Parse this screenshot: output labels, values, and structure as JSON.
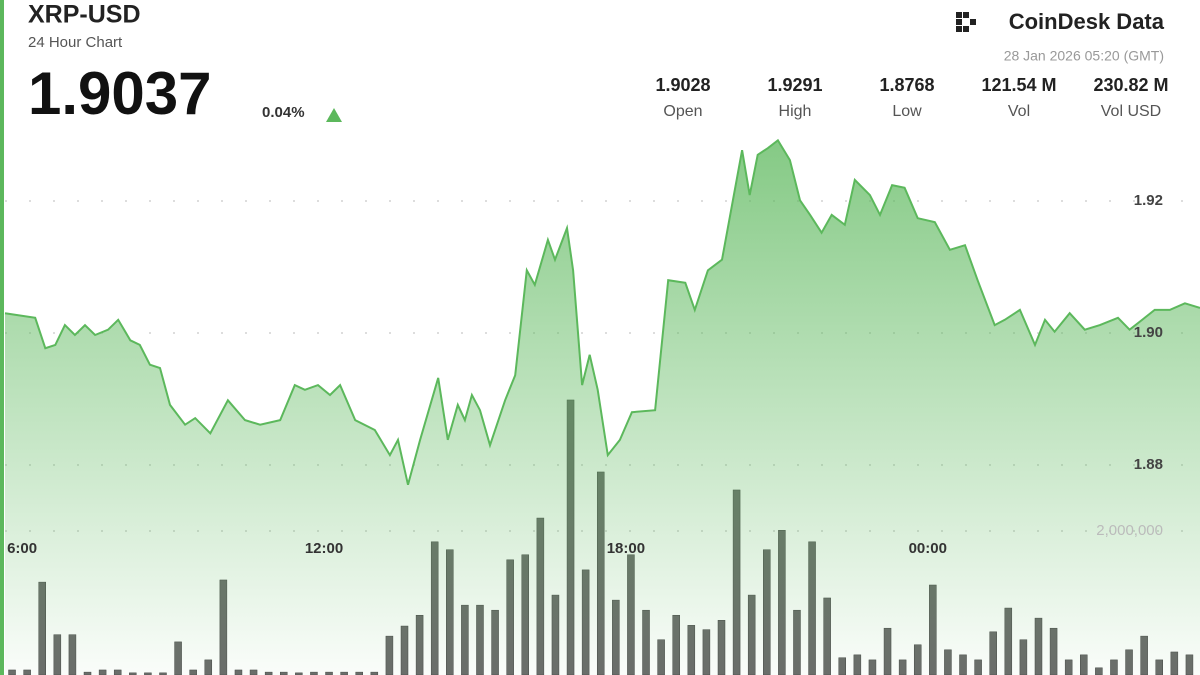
{
  "chart_data": {
    "type": "area",
    "title": "XRP-USD",
    "subtitle": "24 Hour Chart",
    "price": "1.9037",
    "change": "0.04%",
    "brand": "CoinDesk Data",
    "timestamp": "28 Jan 2026 05:20 (GMT)",
    "stats": [
      {
        "value": "1.9028",
        "label": "Open"
      },
      {
        "value": "1.9291",
        "label": "High"
      },
      {
        "value": "1.8768",
        "label": "Low"
      },
      {
        "value": "121.54 M",
        "label": "Vol"
      },
      {
        "value": "230.82 M",
        "label": "Vol USD"
      }
    ],
    "color": "#5cb85c",
    "grid": true,
    "xlim": [
      5.66,
      29.41
    ],
    "xticks": [
      {
        "value": 6,
        "label": "6:00"
      },
      {
        "value": 12,
        "label": "12:00"
      },
      {
        "value": 18,
        "label": "18:00"
      },
      {
        "value": 24,
        "label": "00:00"
      }
    ],
    "ylim": [
      1.865,
      1.935
    ],
    "yticks": [
      1.92,
      {
        "value": 1.9,
        "label": "1.90"
      },
      1.88
    ],
    "x": [
      5.66,
      6.26,
      6.46,
      6.66,
      6.85,
      7.05,
      7.25,
      7.45,
      7.71,
      7.91,
      8.15,
      8.34,
      8.54,
      8.74,
      8.94,
      9.24,
      9.44,
      9.74,
      10.09,
      10.43,
      10.73,
      11.13,
      11.42,
      11.62,
      11.88,
      12.12,
      12.32,
      12.62,
      13.01,
      13.31,
      13.47,
      13.67,
      13.91,
      14.27,
      14.46,
      14.66,
      14.8,
      14.94,
      15.1,
      15.3,
      15.6,
      15.8,
      16.03,
      16.19,
      16.45,
      16.59,
      16.83,
      16.95,
      17.13,
      17.28,
      17.44,
      17.64,
      17.88,
      18.12,
      18.58,
      18.84,
      19.18,
      19.37,
      19.63,
      19.91,
      20.31,
      20.46,
      20.62,
      20.82,
      21.02,
      21.26,
      21.46,
      21.66,
      21.89,
      22.09,
      22.35,
      22.55,
      22.85,
      23.05,
      23.29,
      23.54,
      23.8,
      24.14,
      24.44,
      24.74,
      24.99,
      25.33,
      25.53,
      25.83,
      26.13,
      26.33,
      26.52,
      26.82,
      27.12,
      27.42,
      27.78,
      28.01,
      28.51,
      28.81,
      29.11,
      29.41
    ],
    "values": [
      1.903,
      1.9023,
      1.8977,
      1.8982,
      1.9012,
      1.8997,
      1.9012,
      1.8997,
      1.9005,
      1.902,
      1.8989,
      1.8982,
      1.8952,
      1.8947,
      1.8891,
      1.8861,
      1.8871,
      1.8848,
      1.8898,
      1.8868,
      1.8861,
      1.8868,
      1.8921,
      1.8914,
      1.8921,
      1.8906,
      1.8921,
      1.8868,
      1.8853,
      1.8815,
      1.8838,
      1.877,
      1.8838,
      1.8932,
      1.8838,
      1.8891,
      1.8868,
      1.8906,
      1.8883,
      1.883,
      1.8898,
      1.8936,
      1.9095,
      1.9073,
      1.9141,
      1.9111,
      1.9159,
      1.9095,
      1.8921,
      1.8967,
      1.8914,
      1.8815,
      1.8838,
      1.888,
      1.8883,
      1.908,
      1.9076,
      1.9035,
      1.9095,
      1.9111,
      1.9277,
      1.9209,
      1.927,
      1.928,
      1.9292,
      1.9262,
      1.9201,
      1.9179,
      1.9152,
      1.9179,
      1.9164,
      1.9232,
      1.9209,
      1.9179,
      1.9224,
      1.922,
      1.9174,
      1.9168,
      1.9126,
      1.9133,
      1.908,
      1.9012,
      1.902,
      1.9035,
      1.8982,
      1.902,
      1.9002,
      1.903,
      1.9005,
      1.9012,
      1.9023,
      1.9005,
      1.9035,
      1.9035,
      1.9045,
      1.9038
    ],
    "volume": {
      "color": "#6b6b6b",
      "ylim": [
        0,
        4000000
      ],
      "yticks": [
        {
          "value": 2000000,
          "label": "2,000,000"
        }
      ],
      "x": [
        5.8,
        6.1,
        6.4,
        6.7,
        7.0,
        7.3,
        7.6,
        7.9,
        8.2,
        8.5,
        8.8,
        9.1,
        9.4,
        9.7,
        10.0,
        10.3,
        10.6,
        10.9,
        11.2,
        11.5,
        11.8,
        12.1,
        12.4,
        12.7,
        13.0,
        13.3,
        13.6,
        13.9,
        14.2,
        14.5,
        14.8,
        15.1,
        15.4,
        15.7,
        16.0,
        16.3,
        16.6,
        16.9,
        17.2,
        17.5,
        17.8,
        18.1,
        18.4,
        18.7,
        19.0,
        19.3,
        19.6,
        19.9,
        20.2,
        20.5,
        20.8,
        21.1,
        21.4,
        21.7,
        22.0,
        22.3,
        22.6,
        22.9,
        23.2,
        23.5,
        23.8,
        24.1,
        24.4,
        24.7,
        25.0,
        25.3,
        25.6,
        25.9,
        26.2,
        26.5,
        26.8,
        27.1,
        27.4,
        27.7,
        28.0,
        28.3,
        28.6,
        28.9,
        29.2
      ],
      "values": [
        70000,
        70000,
        1290000,
        560000,
        560000,
        40000,
        70000,
        70000,
        30000,
        30000,
        30000,
        460000,
        70000,
        210000,
        1320000,
        70000,
        70000,
        40000,
        40000,
        30000,
        40000,
        40000,
        40000,
        40000,
        40000,
        540000,
        680000,
        830000,
        1850000,
        1740000,
        970000,
        970000,
        900000,
        1600000,
        1670000,
        2180000,
        1110000,
        3820000,
        1460000,
        2820000,
        1040000,
        1670000,
        900000,
        490000,
        830000,
        690000,
        630000,
        760000,
        2570000,
        1110000,
        1740000,
        2010000,
        900000,
        1850000,
        1070000,
        240000,
        280000,
        210000,
        650000,
        210000,
        420000,
        1250000,
        350000,
        280000,
        210000,
        600000,
        930000,
        490000,
        790000,
        650000,
        210000,
        280000,
        100000,
        210000,
        350000,
        540000,
        210000,
        320000,
        280000
      ]
    }
  }
}
